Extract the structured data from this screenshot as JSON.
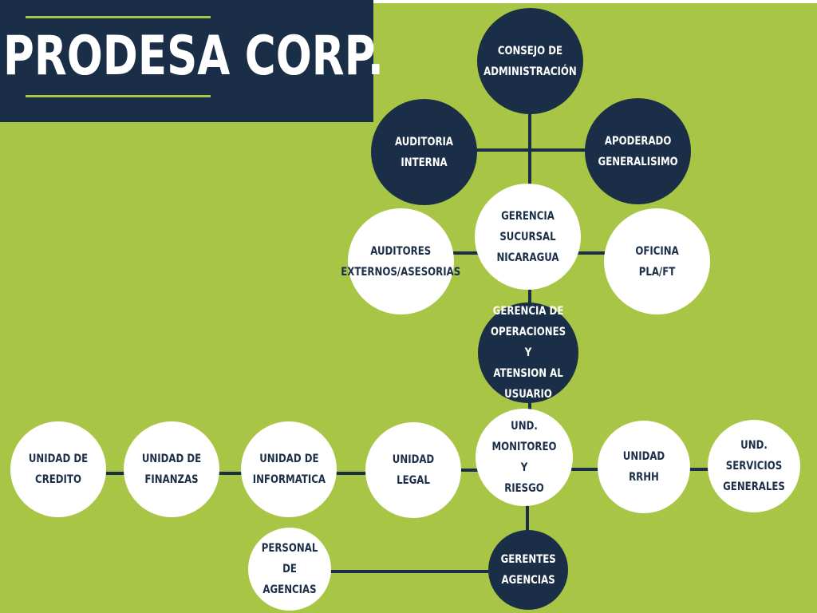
{
  "title": "PRODESA CORP.",
  "colors": {
    "background": "#a8c545",
    "dark": "#1b2e48",
    "light": "#ffffff",
    "line": "#1b2e48"
  },
  "nodes": {
    "consejo": "CONSEJO DE\nADMINISTRACIÓN",
    "auditoria_interna": "AUDITORIA INTERNA",
    "apoderado": "APODERADO\nGENERALISIMO",
    "gerencia_sucursal": "GERENCIA SUCURSAL\nNICARAGUA",
    "auditores_externos": "AUDITORES\nEXTERNOS/ASESORIAS",
    "oficina_pla": "OFICINA PLA/FT",
    "gerencia_operaciones": "GERENCIA DE\nOPERACIONES Y\nATENSION AL\nUSUARIO",
    "monitoreo": "UND. MONITOREO Y\nRIESGO",
    "unidad_legal": "UNIDAD LEGAL",
    "unidad_informatica": "UNIDAD DE\nINFORMATICA",
    "unidad_finanzas": "UNIDAD DE FINANZAS",
    "unidad_credito": "UNIDAD DE CREDITO",
    "unidad_rrhh": "UNIDAD RRHH",
    "servicios_generales": "UND. SERVICIOS\nGENERALES",
    "gerentes_agencias": "GERENTES\nAGENCIAS",
    "personal_agencias": "PERSONAL DE\nAGENCIAS"
  }
}
